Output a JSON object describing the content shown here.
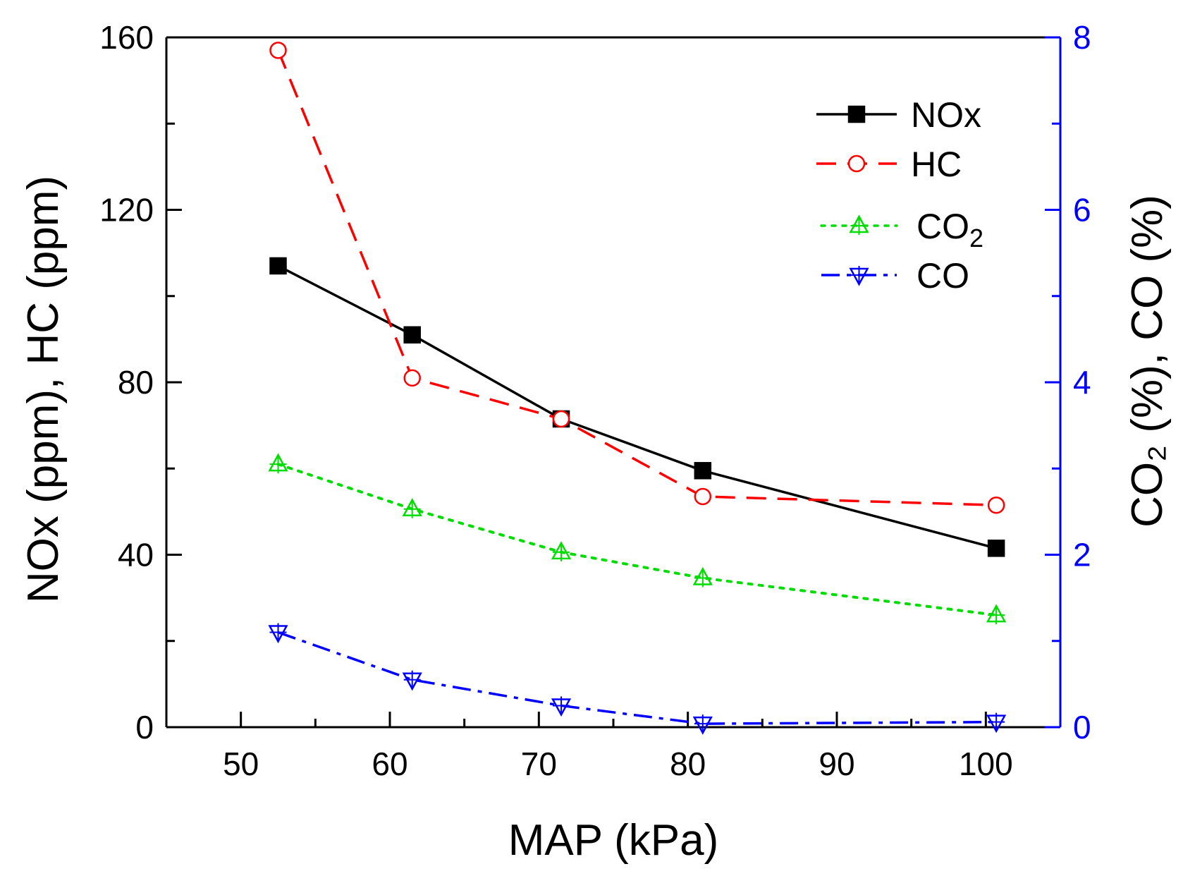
{
  "chart_data": {
    "type": "line",
    "title": "",
    "xlabel": "MAP (kPa)",
    "ylabel": "NOx (ppm), HC (ppm)",
    "y2label": "CO₂ (%), CO (%)",
    "xlim": [
      45,
      105
    ],
    "ylim": [
      0,
      160
    ],
    "y2lim": [
      0,
      8
    ],
    "xticks": [
      "50",
      "60",
      "70",
      "80",
      "90",
      "100"
    ],
    "yticks": [
      "0",
      "40",
      "80",
      "120",
      "160"
    ],
    "y2ticks": [
      "0",
      "2",
      "4",
      "6",
      "8"
    ],
    "grid": false,
    "legend_position": "top-right",
    "colors": {
      "axis": "#000000",
      "right_axis": "#0000ff",
      "nox": "#000000",
      "hc": "#ff0000",
      "co2": "#00dd00",
      "co": "#0000ff"
    },
    "series": [
      {
        "name": "NOx",
        "axis": "left",
        "marker": "filled-square",
        "line": "solid",
        "color": "#000000",
        "x": [
          52.5,
          61.5,
          71.5,
          81,
          100.7
        ],
        "values": [
          107,
          91,
          71.5,
          59.5,
          41.5
        ]
      },
      {
        "name": "HC",
        "axis": "left",
        "marker": "open-circle",
        "line": "dashed",
        "color": "#ff0000",
        "x": [
          52.5,
          61.5,
          71.5,
          81,
          100.7
        ],
        "values": [
          157,
          81,
          71.5,
          53.5,
          51.5
        ]
      },
      {
        "name": "CO2",
        "axis": "right",
        "marker": "open-triangle-up",
        "line": "dotted",
        "color": "#00dd00",
        "x": [
          52.5,
          61.5,
          71.5,
          81,
          100.7
        ],
        "values": [
          3.05,
          2.53,
          2.03,
          1.73,
          1.3
        ]
      },
      {
        "name": "CO",
        "axis": "right",
        "marker": "open-triangle-down",
        "line": "dash-dot",
        "color": "#0000ff",
        "x": [
          52.5,
          61.5,
          71.5,
          81,
          100.7
        ],
        "values": [
          1.1,
          0.55,
          0.25,
          0.04,
          0.06
        ]
      }
    ],
    "legend": [
      {
        "key": "nox",
        "label": "NOx",
        "sub": ""
      },
      {
        "key": "hc",
        "label": "HC",
        "sub": ""
      },
      {
        "key": "co2",
        "label": "CO",
        "sub": "2"
      },
      {
        "key": "co",
        "label": "CO",
        "sub": ""
      }
    ]
  }
}
